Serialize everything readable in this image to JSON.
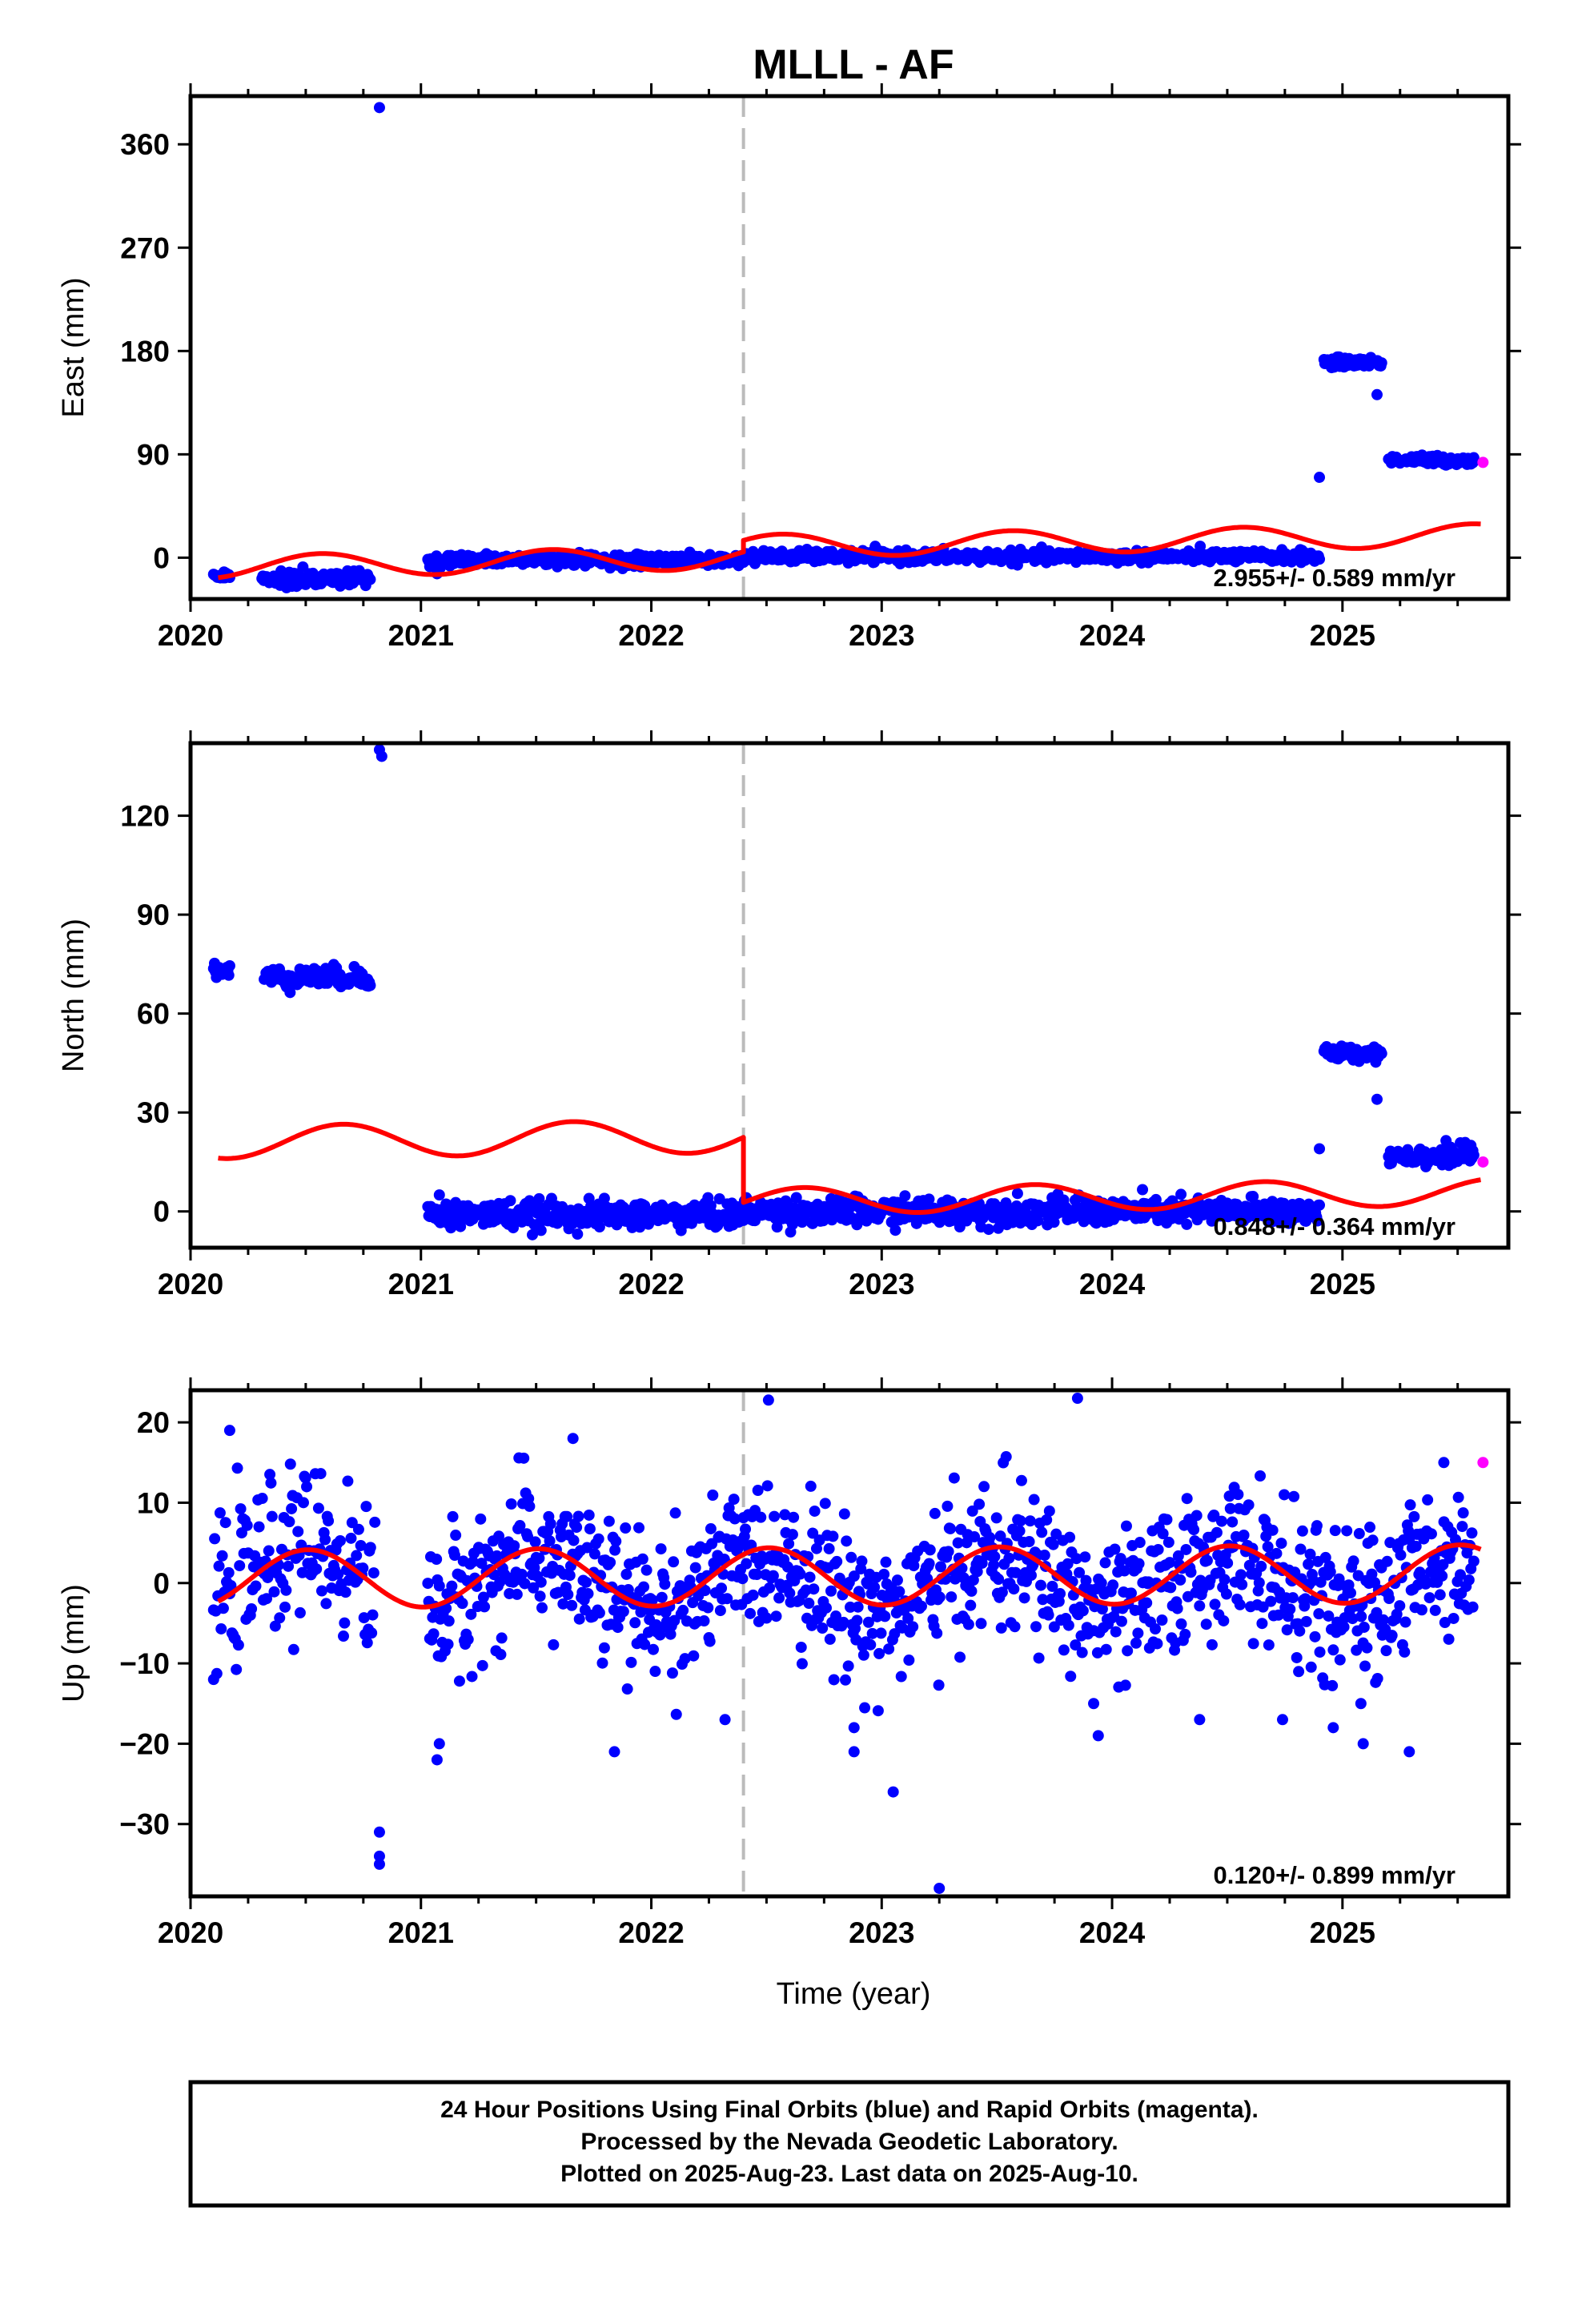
{
  "title": "MLLL - AF",
  "xlabel": "Time (year)",
  "caption": [
    "24 Hour Positions Using Final Orbits (blue) and Rapid Orbits (magenta).",
    "Processed by the Nevada Geodetic Laboratory.",
    "Plotted on 2025-Aug-23. Last data on 2025-Aug-10."
  ],
  "colors": {
    "final": "#0000ff",
    "rapid": "#ff00ff",
    "model": "#ff0000",
    "break_line": "#bbbbbb"
  },
  "chart_data": [
    {
      "type": "scatter",
      "ylabel": "East (mm)",
      "xlim": [
        2020.0,
        2025.72
      ],
      "ylim": [
        -36,
        402
      ],
      "yticks": [
        0,
        90,
        180,
        270,
        360
      ],
      "xticks": [
        2020,
        2021,
        2022,
        2023,
        2024,
        2025
      ],
      "rate": "2.955+/- 0.589 mm/yr",
      "equipment_change": 2022.4,
      "final_segments": [
        {
          "t0": 2020.1,
          "t1": 2020.17,
          "mean": -16,
          "noise": 1.5,
          "n": 18
        },
        {
          "t0": 2020.31,
          "t1": 2020.78,
          "mean": -18,
          "noise": 3,
          "n": 120
        },
        {
          "t0": 2021.03,
          "t1": 2022.4,
          "mean": -2,
          "noise": 2.5,
          "n": 330
        },
        {
          "t0": 2022.4,
          "t1": 2024.9,
          "mean": 1,
          "noise": 2.5,
          "n": 600
        },
        {
          "t0": 2024.92,
          "t1": 2025.17,
          "mean": 170,
          "noise": 2,
          "n": 70
        },
        {
          "t0": 2025.2,
          "t1": 2025.57,
          "mean": 85,
          "noise": 2,
          "n": 90
        }
      ],
      "final_outliers": [
        [
          2020.82,
          392
        ],
        [
          2024.9,
          70
        ],
        [
          2025.15,
          142
        ],
        [
          2021.07,
          -14
        ],
        [
          2020.46,
          -25
        ]
      ],
      "rapid": [
        [
          2025.61,
          83
        ]
      ],
      "model": {
        "t_break": 2022.4,
        "segments": [
          {
            "t0": 2020.12,
            "t1": 2022.4,
            "base": -8,
            "slope": 3.5,
            "amp": 10,
            "phase": 1.2
          },
          {
            "t0": 2022.4,
            "t1": 2025.6,
            "base": 10,
            "slope": 3.0,
            "amp": 10,
            "phase": 1.2
          }
        ]
      }
    },
    {
      "type": "scatter",
      "ylabel": "North (mm)",
      "xlim": [
        2020.0,
        2025.72
      ],
      "ylim": [
        -11,
        142
      ],
      "yticks": [
        0,
        30,
        60,
        90,
        120
      ],
      "xticks": [
        2020,
        2021,
        2022,
        2023,
        2024,
        2025
      ],
      "rate": "0.848+/- 0.364 mm/yr",
      "equipment_change": 2022.4,
      "final_segments": [
        {
          "t0": 2020.1,
          "t1": 2020.17,
          "mean": 73,
          "noise": 1,
          "n": 18
        },
        {
          "t0": 2020.32,
          "t1": 2020.78,
          "mean": 71,
          "noise": 1.5,
          "n": 120
        },
        {
          "t0": 2021.03,
          "t1": 2022.4,
          "mean": -1,
          "noise": 2,
          "n": 330
        },
        {
          "t0": 2022.4,
          "t1": 2024.9,
          "mean": 0,
          "noise": 2,
          "n": 600
        },
        {
          "t0": 2024.92,
          "t1": 2025.17,
          "mean": 48,
          "noise": 1,
          "n": 70
        },
        {
          "t0": 2025.2,
          "t1": 2025.57,
          "mean": 17,
          "noise": 1.5,
          "n": 90
        }
      ],
      "final_outliers": [
        [
          2020.82,
          140
        ],
        [
          2020.83,
          138
        ],
        [
          2024.9,
          19
        ],
        [
          2025.15,
          34
        ],
        [
          2021.08,
          5
        ]
      ],
      "rapid": [
        [
          2025.61,
          15
        ]
      ],
      "model": {
        "t_break": 2022.4,
        "segments": [
          {
            "t0": 2020.12,
            "t1": 2022.4,
            "base": 21,
            "slope": 0.8,
            "amp": 5,
            "phase": 0.6
          },
          {
            "t0": 2022.4,
            "t1": 2025.6,
            "base": 3,
            "slope": 0.9,
            "amp": 4,
            "phase": 0.6
          }
        ]
      }
    },
    {
      "type": "scatter",
      "ylabel": "Up (mm)",
      "xlim": [
        2020.0,
        2025.72
      ],
      "ylim": [
        -39,
        24
      ],
      "yticks": [
        -30,
        -20,
        -10,
        0,
        10,
        20
      ],
      "xticks": [
        2020,
        2021,
        2022,
        2023,
        2024,
        2025
      ],
      "rate": "0.120+/- 0.899 mm/yr",
      "equipment_change": 2022.4,
      "final_segments": [
        {
          "t0": 2020.1,
          "t1": 2020.8,
          "mean": 1,
          "noise": 4.5,
          "n": 150,
          "seasonal": 3.5
        },
        {
          "t0": 2021.03,
          "t1": 2022.4,
          "mean": 0,
          "noise": 4.5,
          "n": 330,
          "seasonal": 3.5
        },
        {
          "t0": 2022.4,
          "t1": 2025.57,
          "mean": 0,
          "noise": 4.5,
          "n": 760,
          "seasonal": 3.5
        }
      ],
      "final_outliers": [
        [
          2020.17,
          19
        ],
        [
          2020.82,
          -31
        ],
        [
          2020.82,
          -34
        ],
        [
          2020.82,
          -35
        ],
        [
          2021.07,
          -22
        ],
        [
          2021.08,
          -20
        ],
        [
          2020.1,
          -12
        ],
        [
          2021.66,
          18
        ],
        [
          2021.84,
          -21
        ],
        [
          2022.88,
          -18
        ],
        [
          2022.88,
          -21
        ],
        [
          2023.05,
          -26
        ],
        [
          2023.25,
          -38
        ],
        [
          2023.85,
          23
        ],
        [
          2023.92,
          -15
        ],
        [
          2023.94,
          -19
        ],
        [
          2024.38,
          -17
        ],
        [
          2024.74,
          -17
        ],
        [
          2024.96,
          -18
        ],
        [
          2025.08,
          -15
        ],
        [
          2025.09,
          -20
        ],
        [
          2025.29,
          -21
        ],
        [
          2025.44,
          15
        ],
        [
          2022.32,
          -17
        ]
      ],
      "rapid": [
        [
          2025.61,
          15
        ]
      ],
      "model": {
        "t_break": null,
        "segments": [
          {
            "t0": 2020.12,
            "t1": 2025.6,
            "base": 0.5,
            "slope": 0.12,
            "amp": 3.6,
            "phase": 1.55
          }
        ]
      }
    }
  ]
}
